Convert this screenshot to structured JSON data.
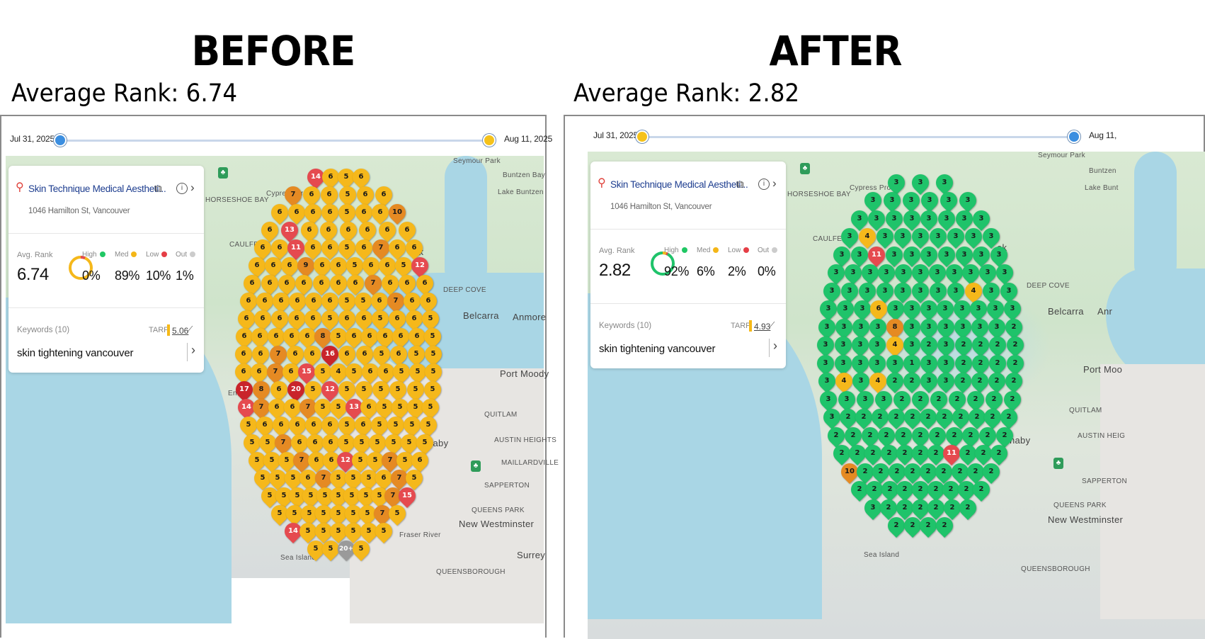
{
  "panels": [
    {
      "id": "before",
      "heading": "BEFORE",
      "average_rank_text": "Average Rank: 6.74",
      "date_start": "Jul 31, 2025",
      "date_end": "Aug 11, 2025",
      "card": {
        "business_name": "Skin Technique Medical Aestheti...",
        "address": "1046 Hamilton St, Vancouver",
        "avg_rank_label": "Avg. Rank",
        "avg_rank_value": "6.74",
        "stats": [
          {
            "label": "High",
            "value": "0%",
            "color": "#20c764"
          },
          {
            "label": "Med",
            "value": "89%",
            "color": "#f4b617"
          },
          {
            "label": "Low",
            "value": "10%",
            "color": "#e53e46"
          },
          {
            "label": "Out",
            "value": "1%",
            "color": "#cccccc"
          }
        ],
        "keywords_label": "Keywords (10)",
        "tarp_label": "TARP",
        "tarp_value": "5.06",
        "keyword": "skin tightening vancouver"
      },
      "places": [
        "Seymour Park",
        "Buntzen Bay",
        "Lake Buntzen",
        "HORSESHOE BAY",
        "Cypress Provin",
        "CAULFEILD",
        "DEEP COVE",
        "Belcarra",
        "Anmore",
        "Port Moody",
        "QUITLAM",
        "AUSTIN HEIGHTS",
        "naby",
        "MAILLARDVILLE",
        "SAPPERTON",
        "QUEENS PARK",
        "New Westminster",
        "Sea Island",
        "QUEENSBOROUGH",
        "Surrey",
        "Fraser River",
        "ek",
        "End"
      ]
    },
    {
      "id": "after",
      "heading": "AFTER",
      "average_rank_text": "Average Rank: 2.82",
      "date_start": "Jul 31, 2025",
      "date_end": "Aug 11,",
      "card": {
        "business_name": "Skin Technique Medical Aestheti...",
        "address": "1046 Hamilton St, Vancouver",
        "avg_rank_label": "Avg. Rank",
        "avg_rank_value": "2.82",
        "stats": [
          {
            "label": "High",
            "value": "92%",
            "color": "#20c764"
          },
          {
            "label": "Med",
            "value": "6%",
            "color": "#f4b617"
          },
          {
            "label": "Low",
            "value": "2%",
            "color": "#e53e46"
          },
          {
            "label": "Out",
            "value": "0%",
            "color": "#cccccc"
          }
        ],
        "keywords_label": "Keywords (10)",
        "tarp_label": "TARP",
        "tarp_value": "4.93",
        "keyword": "skin tightening vancouver"
      },
      "places": [
        "Seymour Park",
        "Buntzen",
        "Lake Bunt",
        "HORSESHOE BAY",
        "Cypress Provin",
        "CAULFEILD",
        "DEEP COVE",
        "Belcarra",
        "Anr",
        "Port Moo",
        "QUITLAM",
        "AUSTIN HEIG",
        "naby",
        "SAPPERTON",
        "QUEENS PARK",
        "New Westminster",
        "Sea Island",
        "QUEENSBOROUGH",
        "ek"
      ]
    }
  ],
  "grid_rows": {
    "before": [
      "14 6 5 6",
      "7 6 6 5 6 6",
      "6 6 6 6 5 6 6 10",
      "6 13 6 6 6 6 6 6",
      "6 6 11 6 6 5 6 7 6 6",
      "6 6 6 9 6 6 5 6 6 5 12",
      "6 6 6 6 6 6 6 7 6 6 6",
      "6 6 6 6 6 6 5 5 6 7 6 6",
      "6 6 6 6 6 5 6 6 5 6 6 5",
      "6 6 6 6 6 8 5 6 6 6 6 6 5",
      "6 6 7 6 6 16 6 6 5 6 5 5",
      "6 6 7 6 15 5 4 5 6 6 5 5 5",
      "17 8 6 20 5 12 5 5 5 5 5 5",
      "14 7 6 6 7 5 5 13 6 5 5 5 5",
      "5 6 6 6 6 6 5 6 5 5 5 5",
      "5 5 7 6 6 6 5 5 5 5 5 5",
      "5 5 5 7 6 6 12 5 5 7 5 6",
      "5 5 5 6 7 5 5 5 6 7 5",
      "5 5 5 5 5 5 5 5 5 7 15",
      "5 5 5 5 5 5 5 7 5",
      "14 5 5 5 5 5 5",
      "5 5 20+ 5"
    ],
    "after": [
      "3 3 3",
      "3 3 3 3 3 3",
      "3 3 3 3 3 3 3 3",
      "3 4 3 3 3 3 3 3 3",
      "3 3 11 3 3 3 3 3 3 3",
      "3 3 3 3 3 3 3 3 3 3 3",
      "3 3 3 3 3 3 3 3 4 3 3",
      "3 3 3 6 3 3 3 3 3 3 3 3",
      "3 3 3 3 8 3 3 3 3 3 3 2",
      "3 3 3 3 4 3 2 3 2 2 2 2",
      "3 3 3 3 3 1 3 3 2 2 2 2",
      "3 4 3 4 2 2 3 3 2 2 2 2",
      "3 3 3 3 2 2 2 2 2 2 2",
      "3 2 2 2 2 2 2 2 2 2 2 2",
      "2 2 2 2 2 2 2 2 2 2 2",
      "2 2 2 2 2 2 2 11 2 2 2",
      "10 2 2 2 2 2 2 2 2 2",
      "2 2 2 2 2 2 2 2 2",
      "3 2 2 2 2 2 2",
      "2 2 2 2"
    ]
  },
  "colors": {
    "green": "#1fc36a",
    "yellow": "#f5b81b",
    "orange": "#e58a23",
    "red": "#e54a4f",
    "dark_red": "#c9242b",
    "grey": "#9a9a9a",
    "slider_blue": "#3b8ee0",
    "slider_yellow": "#f5c21b"
  }
}
